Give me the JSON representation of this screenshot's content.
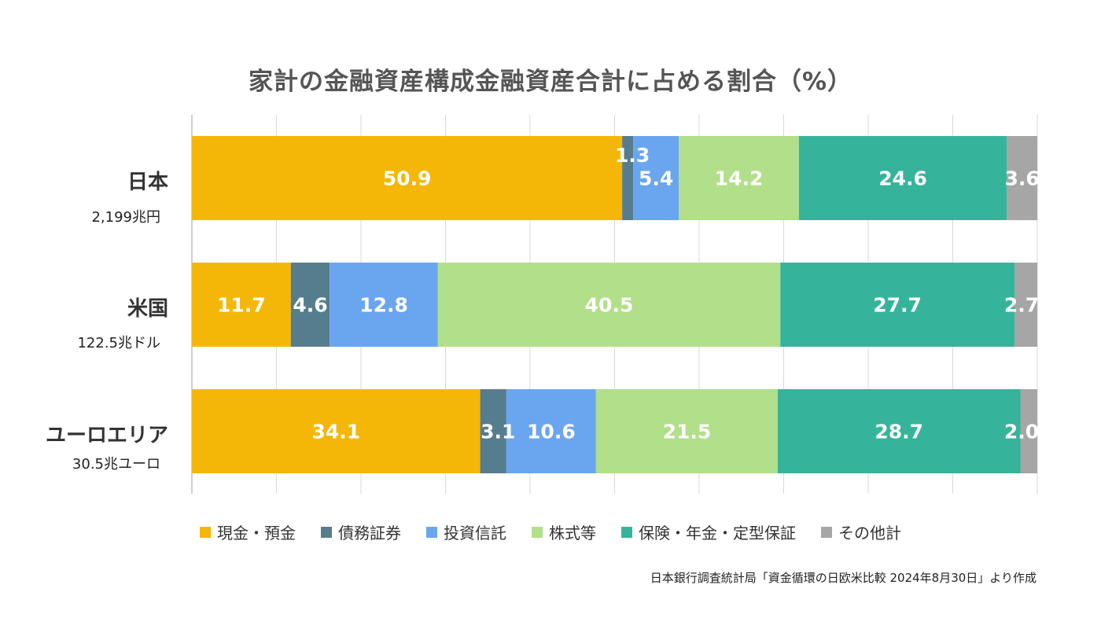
{
  "chart_data": {
    "type": "bar",
    "orientation": "horizontal",
    "stacked": true,
    "title": "家計の金融資産構成金融資産合計に占める割合（%）",
    "categories": [
      "日本",
      "米国",
      "ユーロエリア"
    ],
    "category_subtitles": [
      "2,199兆円",
      "122.5兆ドル",
      "30.5兆ユーロ"
    ],
    "series": [
      {
        "name": "現金・預金",
        "color": "#F5B707",
        "values": [
          50.9,
          11.7,
          34.1
        ]
      },
      {
        "name": "債務証券",
        "color": "#567D8E",
        "values": [
          1.3,
          4.6,
          3.1
        ]
      },
      {
        "name": "投資信託",
        "color": "#6AA5F0",
        "values": [
          5.4,
          12.8,
          10.6
        ]
      },
      {
        "name": "株式等",
        "color": "#B2DF8A",
        "values": [
          14.2,
          40.5,
          21.5
        ]
      },
      {
        "name": "保険・年金・定型保証",
        "color": "#35B49B",
        "values": [
          24.6,
          27.7,
          28.7
        ]
      },
      {
        "name": "その他計",
        "color": "#A6A6A6",
        "values": [
          3.6,
          2.7,
          2.0
        ]
      }
    ],
    "xlim": [
      0,
      100
    ],
    "grid": true,
    "legend_position": "bottom",
    "source": "日本銀行調査統計局「資金循環の日欧米比較 2024年8月30日」より作成"
  }
}
